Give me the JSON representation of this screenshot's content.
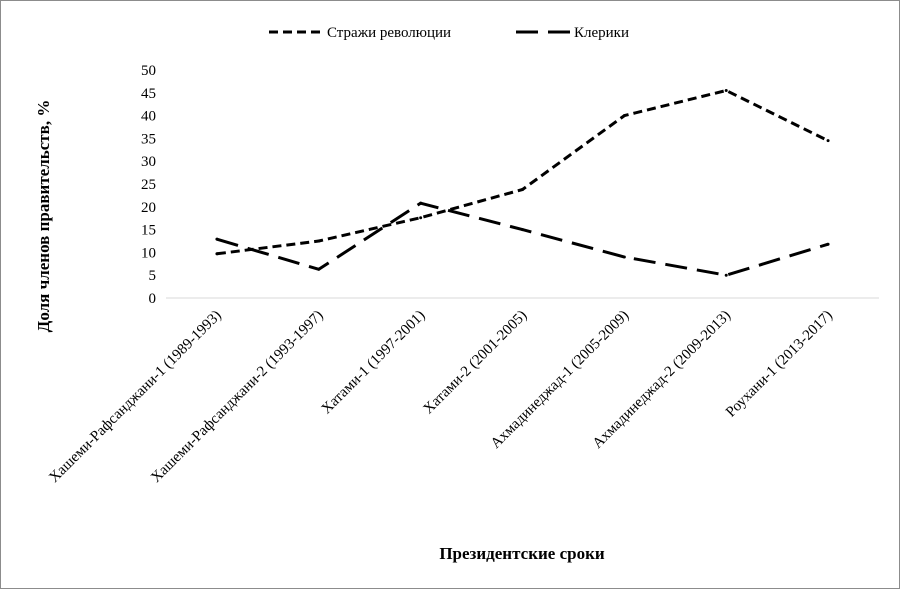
{
  "chart_data": {
    "type": "line",
    "title": "",
    "xlabel": "Президентские сроки",
    "ylabel": "Доля членов правительств,  %",
    "ylim": [
      0,
      50
    ],
    "yticks": [
      0,
      5,
      10,
      15,
      20,
      25,
      30,
      35,
      40,
      45,
      50
    ],
    "grid": false,
    "legend_position": "top",
    "categories": [
      "Хашеми-Рафсанджани-1 (1989-1993)",
      "Хашеми-Рафсанджани-2 (1993-1997)",
      "Хатами-1 (1997-2001)",
      "Хатами-2 (2001-2005)",
      "Ахмадинеджад-1 (2005-2009)",
      "Ахмадинеджад-2 (2009-2013)",
      "Роухани-1 (2013-2017)"
    ],
    "series": [
      {
        "name": "Стражи революции",
        "line_style": "short-dash",
        "color": "#000000",
        "values": [
          9.7,
          12.5,
          17.6,
          23.8,
          40.0,
          45.5,
          34.5
        ]
      },
      {
        "name": "Клерики",
        "line_style": "long-dash",
        "color": "#000000",
        "values": [
          12.9,
          6.3,
          20.8,
          15.0,
          9.0,
          5.0,
          11.8
        ]
      }
    ]
  }
}
